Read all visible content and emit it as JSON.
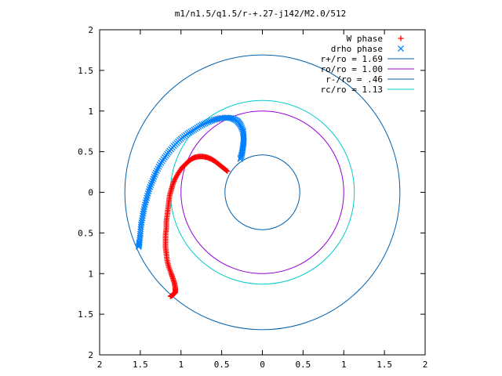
{
  "chart_data": {
    "type": "line",
    "title": "m1/n1.5/q1.5/r-+.27-j142/M2.0/512",
    "xlim": [
      -2,
      2
    ],
    "ylim": [
      -2,
      2
    ],
    "x_tick_labels": [
      "2",
      "1.5",
      "1",
      "0.5",
      "0",
      "0.5",
      "1",
      "1.5",
      "2"
    ],
    "x_tick_values": [
      -2,
      -1.5,
      -1,
      -0.5,
      0,
      0.5,
      1,
      1.5,
      2
    ],
    "y_tick_labels": [
      "2",
      "1.5",
      "1",
      "0.5",
      "0",
      "0.5",
      "1",
      "1.5",
      "2"
    ],
    "y_tick_values": [
      2,
      1.5,
      1,
      0.5,
      0,
      -0.5,
      -1,
      -1.5,
      -2
    ],
    "grid": false,
    "legend_position": "top-right",
    "series": [
      {
        "name": "W phase",
        "kind": "points",
        "marker": "plus",
        "color": "#ff0000",
        "points": [
          [
            -0.43,
            0.26
          ],
          [
            -0.48,
            0.3
          ],
          [
            -0.53,
            0.34
          ],
          [
            -0.58,
            0.38
          ],
          [
            -0.63,
            0.41
          ],
          [
            -0.68,
            0.43
          ],
          [
            -0.73,
            0.44
          ],
          [
            -0.78,
            0.44
          ],
          [
            -0.83,
            0.43
          ],
          [
            -0.87,
            0.41
          ],
          [
            -0.91,
            0.38
          ],
          [
            -0.95,
            0.34
          ],
          [
            -0.99,
            0.3
          ],
          [
            -1.03,
            0.24
          ],
          [
            -1.07,
            0.17
          ],
          [
            -1.1,
            0.1
          ],
          [
            -1.12,
            0.03
          ],
          [
            -1.14,
            -0.04
          ],
          [
            -1.15,
            -0.12
          ],
          [
            -1.16,
            -0.2
          ],
          [
            -1.17,
            -0.28
          ],
          [
            -1.18,
            -0.36
          ],
          [
            -1.18,
            -0.44
          ],
          [
            -1.19,
            -0.52
          ],
          [
            -1.19,
            -0.6
          ],
          [
            -1.19,
            -0.68
          ],
          [
            -1.18,
            -0.76
          ],
          [
            -1.17,
            -0.84
          ],
          [
            -1.15,
            -0.92
          ],
          [
            -1.12,
            -1.0
          ],
          [
            -1.1,
            -1.06
          ],
          [
            -1.08,
            -1.12
          ],
          [
            -1.07,
            -1.18
          ],
          [
            -1.07,
            -1.23
          ],
          [
            -1.09,
            -1.25
          ],
          [
            -1.11,
            -1.27
          ],
          [
            -1.13,
            -1.28
          ]
        ]
      },
      {
        "name": "drho phase",
        "kind": "points",
        "marker": "cross",
        "color": "#0080ff",
        "points": [
          [
            -0.27,
            0.41
          ],
          [
            -0.25,
            0.48
          ],
          [
            -0.24,
            0.55
          ],
          [
            -0.23,
            0.62
          ],
          [
            -0.23,
            0.69
          ],
          [
            -0.24,
            0.76
          ],
          [
            -0.27,
            0.83
          ],
          [
            -0.31,
            0.88
          ],
          [
            -0.37,
            0.91
          ],
          [
            -0.44,
            0.92
          ],
          [
            -0.52,
            0.91
          ],
          [
            -0.6,
            0.89
          ],
          [
            -0.68,
            0.86
          ],
          [
            -0.76,
            0.82
          ],
          [
            -0.84,
            0.77
          ],
          [
            -0.92,
            0.72
          ],
          [
            -1.0,
            0.66
          ],
          [
            -1.07,
            0.59
          ],
          [
            -1.14,
            0.51
          ],
          [
            -1.2,
            0.43
          ],
          [
            -1.26,
            0.34
          ],
          [
            -1.31,
            0.24
          ],
          [
            -1.35,
            0.14
          ],
          [
            -1.39,
            0.04
          ],
          [
            -1.42,
            -0.07
          ],
          [
            -1.45,
            -0.18
          ],
          [
            -1.47,
            -0.29
          ],
          [
            -1.49,
            -0.4
          ],
          [
            -1.5,
            -0.51
          ],
          [
            -1.51,
            -0.61
          ],
          [
            -1.52,
            -0.67
          ]
        ]
      },
      {
        "name": "r+/ro = 1.69",
        "kind": "circle",
        "radius": 1.69,
        "color": "#0060ad"
      },
      {
        "name": "ro/ro = 1.00",
        "kind": "circle",
        "radius": 1.0,
        "color": "#9400d3"
      },
      {
        "name": "r-/ro = .46",
        "kind": "circle",
        "radius": 0.46,
        "color": "#0060ad"
      },
      {
        "name": "rc/ro = 1.13",
        "kind": "circle",
        "radius": 1.13,
        "color": "#00cccc"
      }
    ]
  }
}
